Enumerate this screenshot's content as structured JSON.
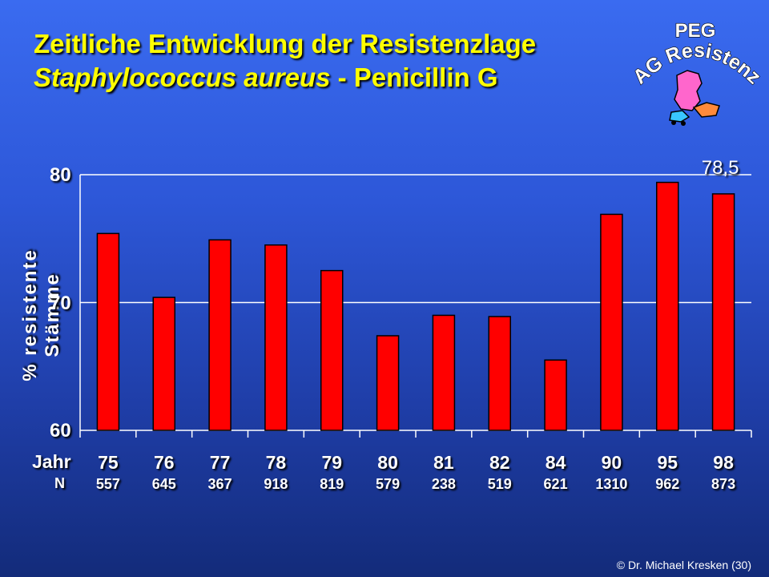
{
  "title_line1": "Zeitliche Entwicklung der Resistenzlage",
  "title_line2_italic": "Staphylococcus aureus",
  "title_line2_rest": " - Penicillin G",
  "logo": {
    "line1": "PEG",
    "line2": "AG Resistenz",
    "icon": "europe-map-icon"
  },
  "copyright": "© Dr. Michael Kresken (30)",
  "row_labels": {
    "year": "Jahr",
    "n": "N"
  },
  "colors": {
    "bar": "#ff0000",
    "title": "#ffff00",
    "text": "#ffffff"
  },
  "chart_data": {
    "type": "bar",
    "ylabel": "% resistente Stämme",
    "ylim": [
      60,
      80
    ],
    "yticks": [
      60,
      70,
      80
    ],
    "grid": true,
    "categories": [
      "75",
      "76",
      "77",
      "78",
      "79",
      "80",
      "81",
      "82",
      "84",
      "90",
      "95",
      "98"
    ],
    "values": [
      75.4,
      70.4,
      74.9,
      74.5,
      72.5,
      67.4,
      69.0,
      68.9,
      65.5,
      76.9,
      79.4,
      78.5
    ],
    "n": [
      "557",
      "645",
      "367",
      "918",
      "819",
      "579",
      "238",
      "519",
      "621",
      "1310",
      "962",
      "873"
    ],
    "annotation": "78,5"
  }
}
